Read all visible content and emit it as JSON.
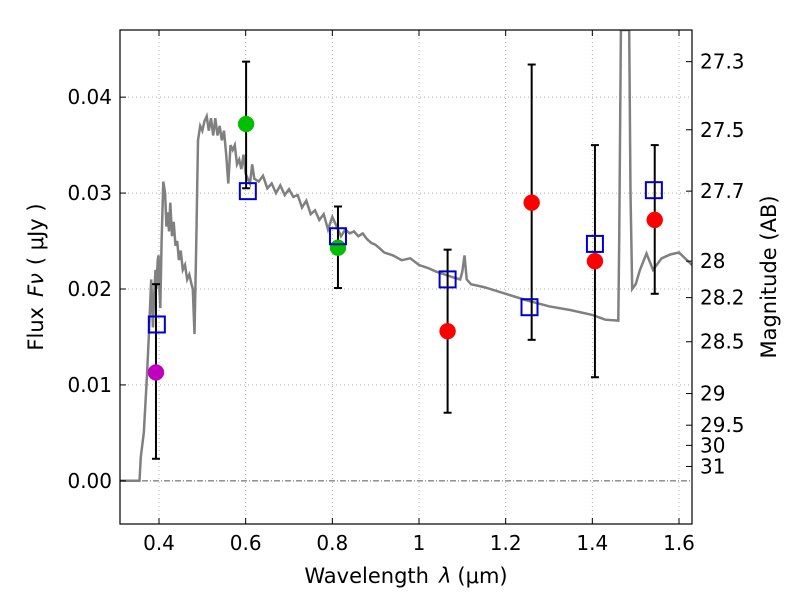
{
  "chart_data": {
    "type": "scatter",
    "title": "",
    "xlabel_prefix": "Wavelength",
    "xlabel_var": "λ",
    "xlabel_unit": "(μm)",
    "ylabel_prefix": "Flux",
    "ylabel_var": "Fν",
    "ylabel_unit": "( μJy )",
    "y2label": "Magnitude (AB)",
    "xlim": [
      0.31,
      1.63
    ],
    "ylim": [
      -0.0045,
      0.047
    ],
    "grid": true,
    "x_ticks": [
      {
        "value": 0.4,
        "label": "0.4"
      },
      {
        "value": 0.6,
        "label": "0.6"
      },
      {
        "value": 0.8,
        "label": "0.8"
      },
      {
        "value": 1.0,
        "label": "1"
      },
      {
        "value": 1.2,
        "label": "1.2"
      },
      {
        "value": 1.4,
        "label": "1.4"
      },
      {
        "value": 1.6,
        "label": "1.6"
      }
    ],
    "y_ticks": [
      {
        "value": 0.0,
        "label": "0.00"
      },
      {
        "value": 0.01,
        "label": "0.01"
      },
      {
        "value": 0.02,
        "label": "0.02"
      },
      {
        "value": 0.03,
        "label": "0.03"
      },
      {
        "value": 0.04,
        "label": "0.04"
      }
    ],
    "magnitude_ticks": [
      {
        "label": "27.3",
        "flux": 0.0437
      },
      {
        "label": "27.5",
        "flux": 0.0366
      },
      {
        "label": "27.7",
        "flux": 0.0302
      },
      {
        "label": "28",
        "flux": 0.0229
      },
      {
        "label": "28.2",
        "flux": 0.0191
      },
      {
        "label": "28.5",
        "flux": 0.0145
      },
      {
        "label": "29",
        "flux": 0.0091
      },
      {
        "label": "29.5",
        "flux": 0.0058
      },
      {
        "label": "30",
        "flux": 0.0037
      },
      {
        "label": "31",
        "flux": 0.0015
      }
    ],
    "observed": [
      {
        "x": 0.393,
        "y": 0.0113,
        "yerr_low": 0.0023,
        "yerr_high": 0.0205,
        "color": "#bf00bf"
      },
      {
        "x": 0.601,
        "y": 0.0372,
        "yerr_low": 0.0305,
        "yerr_high": 0.0437,
        "color": "#00bf00"
      },
      {
        "x": 0.813,
        "y": 0.0243,
        "yerr_low": 0.0201,
        "yerr_high": 0.0286,
        "color": "#00bf00"
      },
      {
        "x": 1.066,
        "y": 0.0156,
        "yerr_low": 0.0071,
        "yerr_high": 0.0241,
        "color": "#ff0000"
      },
      {
        "x": 1.26,
        "y": 0.029,
        "yerr_low": 0.0147,
        "yerr_high": 0.0434,
        "color": "#ff0000"
      },
      {
        "x": 1.406,
        "y": 0.0229,
        "yerr_low": 0.0108,
        "yerr_high": 0.035,
        "color": "#ff0000"
      },
      {
        "x": 1.544,
        "y": 0.0272,
        "yerr_low": 0.0195,
        "yerr_high": 0.035,
        "color": "#ff0000"
      }
    ],
    "model_synthetic": [
      {
        "x": 0.395,
        "y": 0.0163
      },
      {
        "x": 0.605,
        "y": 0.0302
      },
      {
        "x": 0.813,
        "y": 0.0255
      },
      {
        "x": 1.066,
        "y": 0.021
      },
      {
        "x": 1.255,
        "y": 0.0181
      },
      {
        "x": 1.406,
        "y": 0.0247
      },
      {
        "x": 1.542,
        "y": 0.0303
      }
    ],
    "model_sed": [
      [
        0.31,
        0.0
      ],
      [
        0.35,
        0.0
      ],
      [
        0.355,
        0.0
      ],
      [
        0.358,
        0.0025
      ],
      [
        0.365,
        0.005
      ],
      [
        0.372,
        0.0108
      ],
      [
        0.377,
        0.0155
      ],
      [
        0.382,
        0.021
      ],
      [
        0.384,
        0.0185
      ],
      [
        0.386,
        0.016
      ],
      [
        0.389,
        0.0195
      ],
      [
        0.392,
        0.022
      ],
      [
        0.394,
        0.02
      ],
      [
        0.397,
        0.023
      ],
      [
        0.399,
        0.0235
      ],
      [
        0.401,
        0.02
      ],
      [
        0.403,
        0.018
      ],
      [
        0.406,
        0.025
      ],
      [
        0.41,
        0.0312
      ],
      [
        0.414,
        0.03
      ],
      [
        0.417,
        0.0265
      ],
      [
        0.42,
        0.028
      ],
      [
        0.423,
        0.026
      ],
      [
        0.426,
        0.029
      ],
      [
        0.43,
        0.0255
      ],
      [
        0.434,
        0.027
      ],
      [
        0.438,
        0.0245
      ],
      [
        0.442,
        0.025
      ],
      [
        0.446,
        0.023
      ],
      [
        0.45,
        0.024
      ],
      [
        0.455,
        0.022
      ],
      [
        0.46,
        0.0225
      ],
      [
        0.465,
        0.021
      ],
      [
        0.47,
        0.0215
      ],
      [
        0.475,
        0.0205
      ],
      [
        0.478,
        0.02
      ],
      [
        0.482,
        0.0153
      ],
      [
        0.486,
        0.025
      ],
      [
        0.49,
        0.0355
      ],
      [
        0.495,
        0.037
      ],
      [
        0.5,
        0.0365
      ],
      [
        0.505,
        0.0375
      ],
      [
        0.51,
        0.038
      ],
      [
        0.515,
        0.0365
      ],
      [
        0.52,
        0.0378
      ],
      [
        0.525,
        0.036
      ],
      [
        0.53,
        0.0378
      ],
      [
        0.535,
        0.036
      ],
      [
        0.54,
        0.037
      ],
      [
        0.545,
        0.0355
      ],
      [
        0.55,
        0.0365
      ],
      [
        0.555,
        0.034
      ],
      [
        0.56,
        0.031
      ],
      [
        0.565,
        0.035
      ],
      [
        0.57,
        0.0345
      ],
      [
        0.575,
        0.035
      ],
      [
        0.58,
        0.033
      ],
      [
        0.585,
        0.0335
      ],
      [
        0.59,
        0.0325
      ],
      [
        0.595,
        0.034
      ],
      [
        0.6,
        0.032
      ],
      [
        0.605,
        0.0315
      ],
      [
        0.61,
        0.031
      ],
      [
        0.615,
        0.033
      ],
      [
        0.62,
        0.0315
      ],
      [
        0.63,
        0.0312
      ],
      [
        0.64,
        0.0318
      ],
      [
        0.65,
        0.0305
      ],
      [
        0.66,
        0.031
      ],
      [
        0.67,
        0.03
      ],
      [
        0.68,
        0.0308
      ],
      [
        0.69,
        0.0298
      ],
      [
        0.7,
        0.0304
      ],
      [
        0.71,
        0.0296
      ],
      [
        0.72,
        0.0298
      ],
      [
        0.73,
        0.0285
      ],
      [
        0.74,
        0.0292
      ],
      [
        0.75,
        0.0278
      ],
      [
        0.76,
        0.0282
      ],
      [
        0.77,
        0.0272
      ],
      [
        0.78,
        0.0278
      ],
      [
        0.79,
        0.0262
      ],
      [
        0.8,
        0.0275
      ],
      [
        0.81,
        0.0265
      ],
      [
        0.82,
        0.0255
      ],
      [
        0.83,
        0.0262
      ],
      [
        0.84,
        0.0258
      ],
      [
        0.85,
        0.026
      ],
      [
        0.86,
        0.0255
      ],
      [
        0.87,
        0.0258
      ],
      [
        0.88,
        0.0252
      ],
      [
        0.89,
        0.0248
      ],
      [
        0.9,
        0.0246
      ],
      [
        0.92,
        0.0238
      ],
      [
        0.94,
        0.0235
      ],
      [
        0.96,
        0.023
      ],
      [
        0.98,
        0.0232
      ],
      [
        1.0,
        0.0225
      ],
      [
        1.02,
        0.0222
      ],
      [
        1.04,
        0.0218
      ],
      [
        1.06,
        0.0215
      ],
      [
        1.08,
        0.0212
      ],
      [
        1.095,
        0.021
      ],
      [
        1.1,
        0.0218
      ],
      [
        1.105,
        0.0235
      ],
      [
        1.11,
        0.021
      ],
      [
        1.12,
        0.0205
      ],
      [
        1.15,
        0.0202
      ],
      [
        1.2,
        0.0195
      ],
      [
        1.25,
        0.0188
      ],
      [
        1.3,
        0.0182
      ],
      [
        1.35,
        0.0178
      ],
      [
        1.4,
        0.0173
      ],
      [
        1.43,
        0.0168
      ],
      [
        1.46,
        0.0167
      ],
      [
        1.462,
        0.025
      ],
      [
        1.466,
        0.047
      ],
      [
        1.485,
        0.047
      ],
      [
        1.488,
        0.03
      ],
      [
        1.492,
        0.02
      ],
      [
        1.5,
        0.0205
      ],
      [
        1.51,
        0.022
      ],
      [
        1.525,
        0.0237
      ],
      [
        1.54,
        0.022
      ],
      [
        1.56,
        0.0232
      ],
      [
        1.58,
        0.0236
      ],
      [
        1.6,
        0.0238
      ],
      [
        1.63,
        0.0225
      ]
    ]
  }
}
